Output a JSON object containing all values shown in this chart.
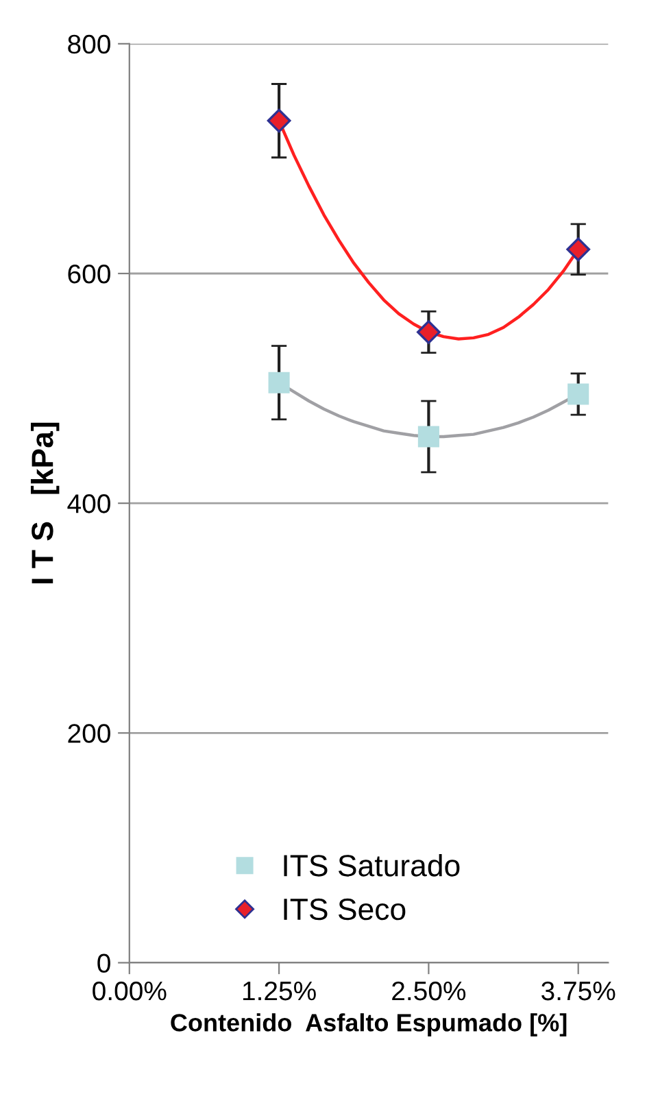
{
  "chart_data": {
    "type": "scatter",
    "xlabel": "Contenido  Asfalto Espumado [%]",
    "ylabel": "I T S   [kPa]",
    "x": [
      1.25,
      2.5,
      3.75
    ],
    "series": [
      {
        "name": "ITS Saturado",
        "color": "#b3dde0",
        "marker": "square",
        "values": [
          505,
          458,
          495
        ],
        "errors": [
          32,
          31,
          18
        ]
      },
      {
        "name": "ITS Seco",
        "color": "#e8202a",
        "marker": "diamond",
        "values": [
          733,
          549,
          621
        ],
        "errors": [
          32,
          18,
          22
        ]
      },
      {
        "type": "line",
        "color": "#a0a0a4",
        "marker": "none",
        "x": [
          1.25,
          1.375,
          1.5,
          1.625,
          1.75,
          1.875,
          2.0,
          2.125,
          2.25,
          2.375,
          2.5,
          2.625,
          2.75,
          2.875,
          3.0,
          3.125,
          3.25,
          3.375,
          3.5,
          3.625,
          3.75
        ],
        "values": [
          505,
          497,
          489,
          482,
          476,
          471,
          467,
          463,
          461,
          459,
          458,
          458,
          459,
          460,
          463,
          466,
          470,
          475,
          481,
          488,
          495
        ]
      },
      {
        "type": "line",
        "color": "#ff2020",
        "marker": "none",
        "x": [
          1.25,
          1.375,
          1.5,
          1.625,
          1.75,
          1.875,
          2.0,
          2.125,
          2.25,
          2.375,
          2.5,
          2.625,
          2.75,
          2.875,
          3.0,
          3.125,
          3.25,
          3.375,
          3.5,
          3.625,
          3.75
        ],
        "values": [
          733,
          703,
          676,
          651,
          629,
          609,
          592,
          577,
          565,
          556,
          549,
          545,
          543,
          544,
          547,
          553,
          562,
          573,
          586,
          602,
          621
        ]
      }
    ],
    "xlim": [
      0,
      4
    ],
    "xticks": [
      {
        "value": 0,
        "label": "0.00%"
      },
      {
        "value": 1.25,
        "label": "1.25%"
      },
      {
        "value": 2.5,
        "label": "2.50%"
      },
      {
        "value": 3.75,
        "label": "3.75%"
      }
    ],
    "ylim": [
      0,
      800
    ],
    "yticks": [
      0,
      200,
      400,
      600,
      800
    ],
    "grid": "y",
    "legend": "bottom left"
  }
}
